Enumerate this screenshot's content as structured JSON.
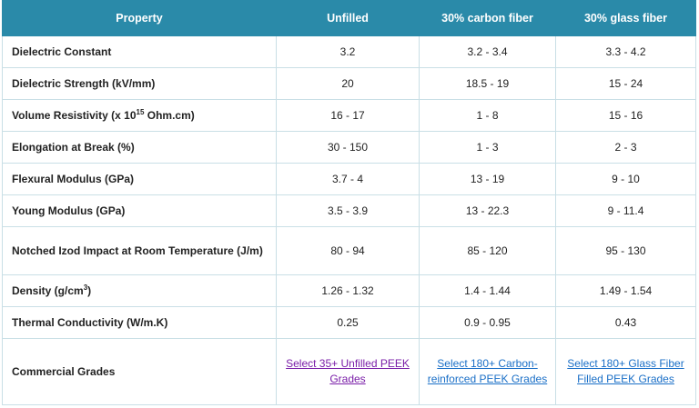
{
  "table": {
    "header": [
      "Property",
      "Unfilled",
      "30% carbon fiber",
      "30% glass fiber"
    ],
    "rows": [
      [
        [
          "Dielectric Constant"
        ],
        "3.2",
        "3.2 - 3.4",
        "3.3 - 4.2"
      ],
      [
        [
          "Dielectric Strength (kV/mm)"
        ],
        "20",
        "18.5 - 19",
        "15 - 24"
      ],
      [
        [
          "Volume Resistivity (x 10",
          "15",
          " Ohm.cm)"
        ],
        "16 - 17",
        "1 - 8",
        "15 - 16"
      ],
      [
        [
          "Elongation at Break (%)"
        ],
        "30 - 150",
        "1 - 3",
        "2 - 3"
      ],
      [
        [
          "Flexural Modulus (GPa)"
        ],
        "3.7 - 4",
        "13 - 19",
        "9 - 10"
      ],
      [
        [
          "Young Modulus (GPa)"
        ],
        "3.5 - 3.9",
        "13 - 22.3",
        "9 - 11.4"
      ],
      [
        [
          "Notched Izod Impact at Room Temperature (J/m)"
        ],
        "80 - 94",
        "85 - 120",
        "95 - 130"
      ],
      [
        [
          "Density (g/cm",
          "3",
          ")"
        ],
        "1.26 - 1.32",
        "1.4 - 1.44",
        "1.49 - 1.54"
      ],
      [
        [
          "Thermal Conductivity (W/m.K)"
        ],
        "0.25",
        "0.9 - 0.95",
        "0.43"
      ]
    ],
    "grades_row": {
      "label": "Commercial Grades",
      "links": [
        "Select 35+ Unfilled PEEK Grades",
        "Select 180+ Carbon-reinforced PEEK Grades",
        "Select 180+ Glass Fiber Filled PEEK Grades"
      ]
    }
  }
}
